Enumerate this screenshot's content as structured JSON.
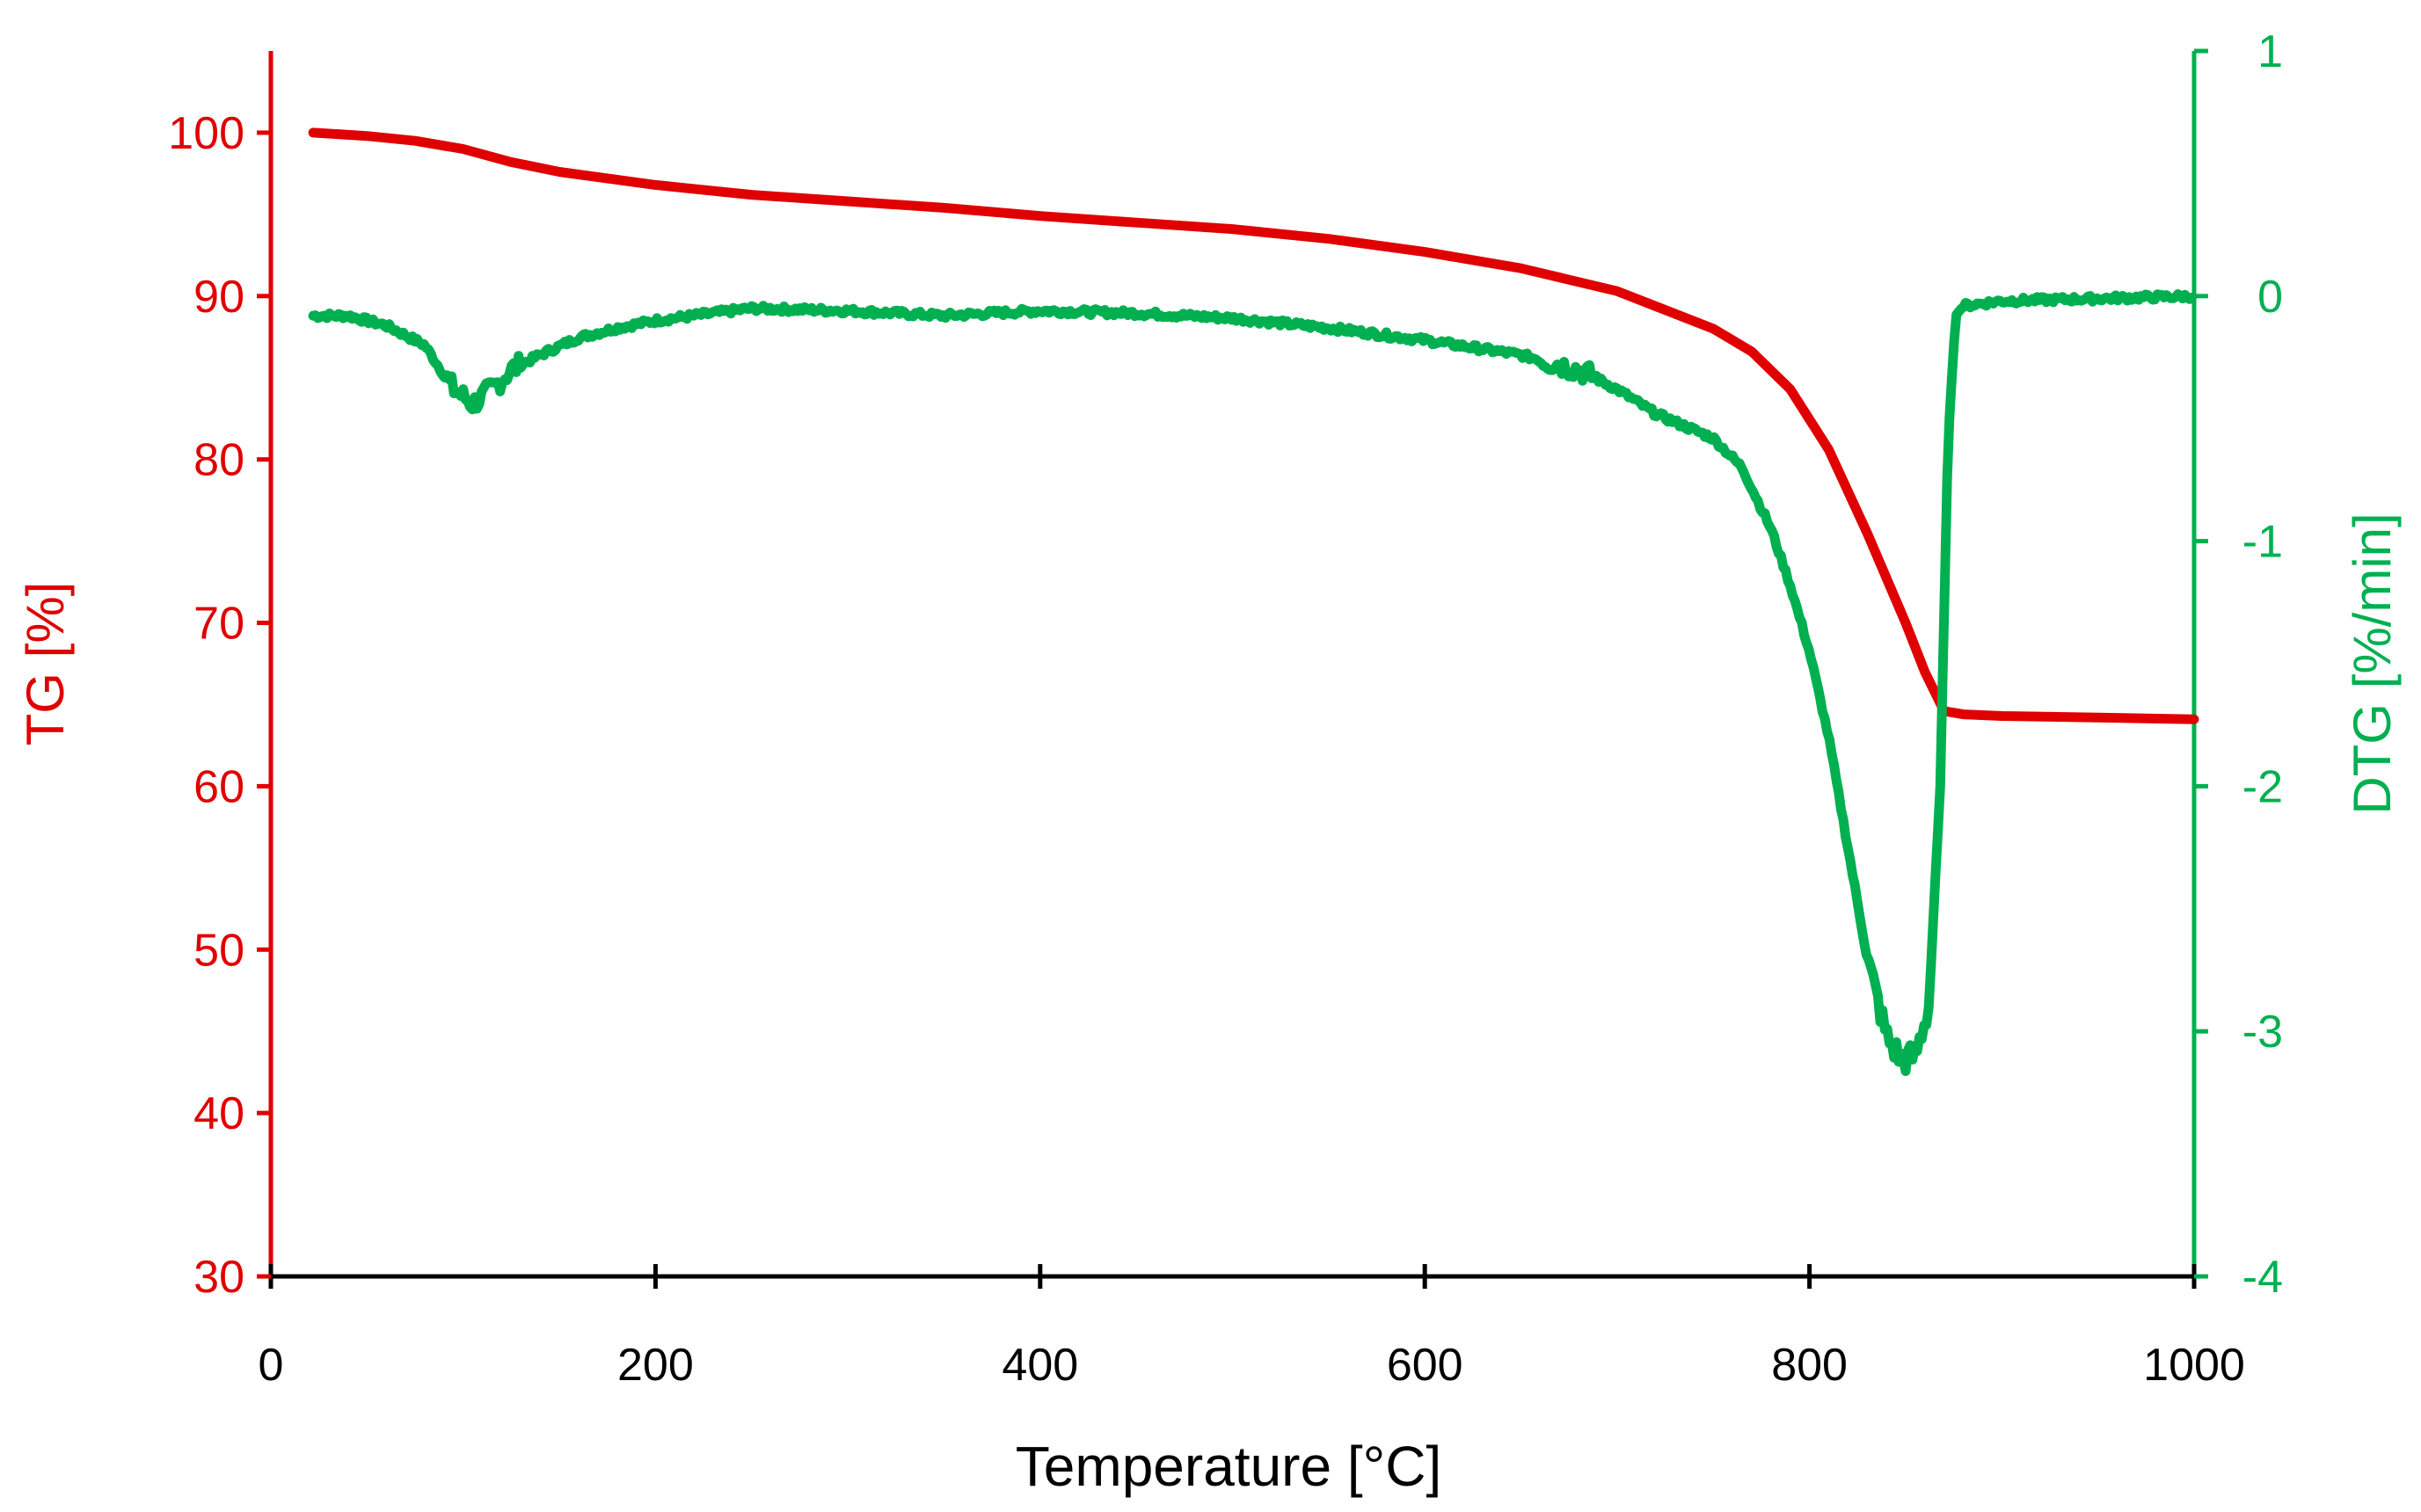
{
  "chart_data": {
    "type": "line",
    "title": "",
    "xlabel": "Temperature [°C]",
    "ylabel_left": "TG [%]",
    "ylabel_right": "DTG [%/min]",
    "xlim": [
      0,
      1000
    ],
    "ylim_left": [
      30,
      105
    ],
    "ylim_right": [
      -4,
      1
    ],
    "x_ticks": [
      "0",
      "200",
      "400",
      "600",
      "800",
      "1000"
    ],
    "y_left_ticks": [
      "30",
      "40",
      "50",
      "60",
      "70",
      "80",
      "90",
      "100"
    ],
    "y_right_ticks": [
      "-4",
      "-3",
      "-2",
      "-1",
      "0",
      "1"
    ],
    "grid": false,
    "colors": {
      "tg": "#e00000",
      "dtg": "#00b050",
      "x_axis": "#000000"
    },
    "series": [
      {
        "name": "TG",
        "axis": "left",
        "color": "#e00000",
        "x": [
          22,
          50,
          75,
          100,
          125,
          150,
          200,
          250,
          300,
          350,
          400,
          450,
          500,
          550,
          600,
          650,
          700,
          750,
          770,
          790,
          810,
          830,
          850,
          860,
          870,
          880,
          900,
          950,
          1000
        ],
        "y": [
          100,
          99.8,
          99.5,
          99.0,
          98.2,
          97.6,
          96.8,
          96.2,
          95.8,
          95.4,
          94.9,
          94.5,
          94.1,
          93.5,
          92.7,
          91.7,
          90.3,
          88.0,
          86.6,
          84.3,
          80.6,
          75.5,
          70.0,
          67.0,
          64.6,
          64.4,
          64.3,
          64.2,
          64.1
        ]
      },
      {
        "name": "DTG",
        "axis": "right",
        "color": "#00b050",
        "x": [
          22,
          40,
          60,
          80,
          95,
          105,
          115,
          125,
          140,
          160,
          180,
          200,
          250,
          300,
          350,
          400,
          450,
          500,
          550,
          600,
          650,
          670,
          680,
          700,
          720,
          750,
          765,
          780,
          790,
          800,
          810,
          820,
          830,
          840,
          848,
          855,
          862,
          868,
          872,
          876,
          880,
          900,
          950,
          1000
        ],
        "y": [
          -0.08,
          -0.08,
          -0.12,
          -0.2,
          -0.38,
          -0.44,
          -0.38,
          -0.3,
          -0.24,
          -0.17,
          -0.13,
          -0.1,
          -0.05,
          -0.06,
          -0.08,
          -0.06,
          -0.07,
          -0.09,
          -0.13,
          -0.18,
          -0.24,
          -0.28,
          -0.3,
          -0.38,
          -0.48,
          -0.58,
          -0.7,
          -0.95,
          -1.18,
          -1.45,
          -1.8,
          -2.25,
          -2.7,
          -3.02,
          -3.12,
          -3.1,
          -2.9,
          -2.0,
          -0.6,
          -0.08,
          -0.04,
          -0.02,
          -0.01,
          0.0
        ]
      }
    ]
  }
}
